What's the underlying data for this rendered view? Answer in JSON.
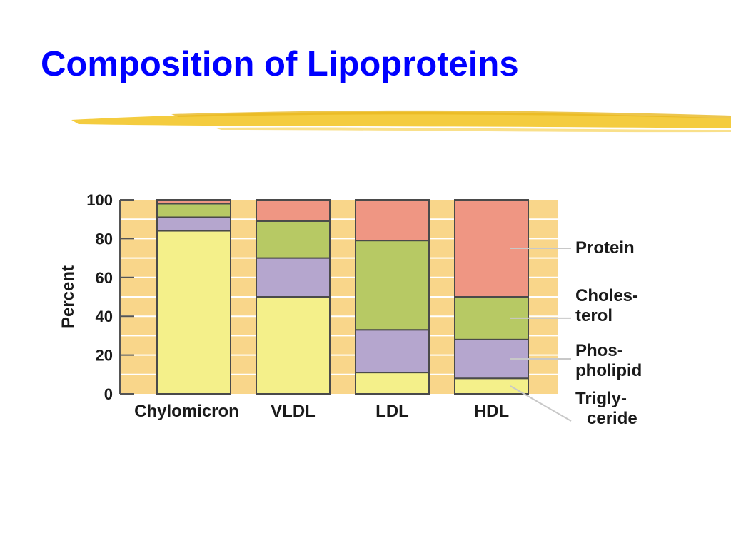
{
  "slide": {
    "title": "Composition of Lipoproteins"
  },
  "colors": {
    "title": "#0000ff",
    "underline": "#f3c62a",
    "band_background": "#f9d68a",
    "protein": "#ef9683",
    "cholesterol": "#b7c964",
    "phospholipid": "#b5a6ce",
    "triglyceride": "#f4f08a",
    "outline": "#4a4a4a"
  },
  "chart_data": {
    "type": "bar",
    "stacked": true,
    "ylabel": "Percent",
    "xlabel": "",
    "ylim": [
      0,
      100
    ],
    "y_ticks": [
      "0",
      "20",
      "40",
      "60",
      "80",
      "100"
    ],
    "grid": true,
    "legend_placement": "right",
    "categories": [
      "Chylomicron",
      "VLDL",
      "LDL",
      "HDL"
    ],
    "series": [
      {
        "key": "triglyceride",
        "name": "Trigly- ceride",
        "label_lines": [
          "Trigly-",
          "ceride"
        ],
        "values": [
          84,
          50,
          11,
          8
        ]
      },
      {
        "key": "phospholipid",
        "name": "Phos- pholipid",
        "label_lines": [
          "Phos-",
          "pholipid"
        ],
        "values": [
          7,
          20,
          22,
          20
        ]
      },
      {
        "key": "cholesterol",
        "name": "Choles- terol",
        "label_lines": [
          "Choles-",
          "terol"
        ],
        "values": [
          7,
          19,
          46,
          22
        ]
      },
      {
        "key": "protein",
        "name": "Protein",
        "label_lines": [
          "Protein"
        ],
        "values": [
          2,
          11,
          21,
          50
        ]
      }
    ]
  }
}
